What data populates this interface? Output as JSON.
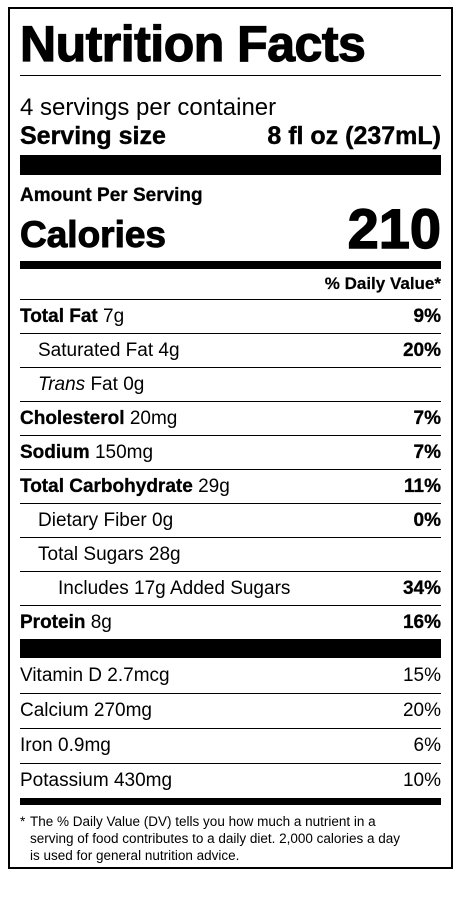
{
  "title": "Nutrition Facts",
  "servings_per_container": "4 servings per container",
  "serving_size": {
    "label": "Serving size",
    "value": "8 fl oz (237mL)"
  },
  "amount_per_serving": "Amount Per Serving",
  "calories": {
    "label": "Calories",
    "value": "210"
  },
  "daily_value_header": "% Daily Value*",
  "nutrients": [
    {
      "name": "Total Fat",
      "amount": "7g",
      "dv": "9%"
    },
    {
      "name": "Saturated Fat",
      "amount": "4g",
      "dv": "20%"
    },
    {
      "name_italic": "Trans",
      "name": "Fat",
      "amount": "0g",
      "dv": ""
    },
    {
      "name": "Cholesterol",
      "amount": "20mg",
      "dv": "7%"
    },
    {
      "name": "Sodium",
      "amount": "150mg",
      "dv": "7%"
    },
    {
      "name": "Total Carbohydrate",
      "amount": "29g",
      "dv": "11%"
    },
    {
      "name": "Dietary Fiber",
      "amount": "0g",
      "dv": "0%"
    },
    {
      "name": "Total Sugars",
      "amount": "28g",
      "dv": ""
    },
    {
      "name": "Includes 17g Added Sugars",
      "amount": "",
      "dv": "34%"
    },
    {
      "name": "Protein",
      "amount": "8g",
      "dv": "16%"
    }
  ],
  "vitamins": [
    {
      "name": "Vitamin D",
      "amount": "2.7mcg",
      "dv": "15%"
    },
    {
      "name": "Calcium",
      "amount": "270mg",
      "dv": "20%"
    },
    {
      "name": "Iron",
      "amount": "0.9mg",
      "dv": "6%"
    },
    {
      "name": "Potassium",
      "amount": "430mg",
      "dv": "10%"
    }
  ],
  "footnote": {
    "star": "*",
    "line1": "The % Daily Value (DV) tells you how much a nutrient in a",
    "line2": "serving of food contributes to a daily diet. 2,000 calories a day",
    "line3": "is used for general nutrition advice."
  }
}
